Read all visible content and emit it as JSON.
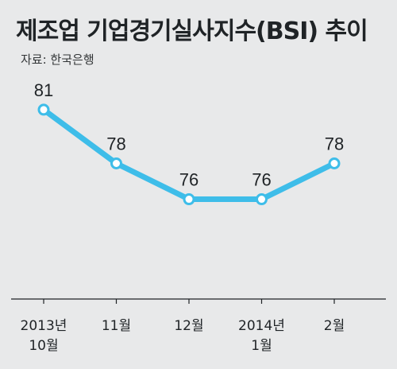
{
  "header": {
    "title": "제조업 기업경기실사지수(BSI) 추이",
    "source": "자료: 한국은행"
  },
  "chart_data": {
    "type": "line",
    "title": "제조업 기업경기실사지수(BSI) 추이",
    "categories": [
      [
        "2013년",
        "10월"
      ],
      [
        "11월"
      ],
      [
        "12월"
      ],
      [
        "2014년",
        "1월"
      ],
      [
        "2월"
      ]
    ],
    "values": [
      81,
      78,
      76,
      76,
      78
    ],
    "data_labels": [
      "81",
      "78",
      "76",
      "76",
      "78"
    ],
    "xlabel": "",
    "ylabel": "",
    "ylim": [
      70.43,
      84.46
    ],
    "grid": false,
    "legend": "none",
    "colors": {
      "line": "#3ebde9",
      "marker_fill": "#ffffff",
      "axis": "#1f2326",
      "background": "#e8e9ea"
    }
  }
}
